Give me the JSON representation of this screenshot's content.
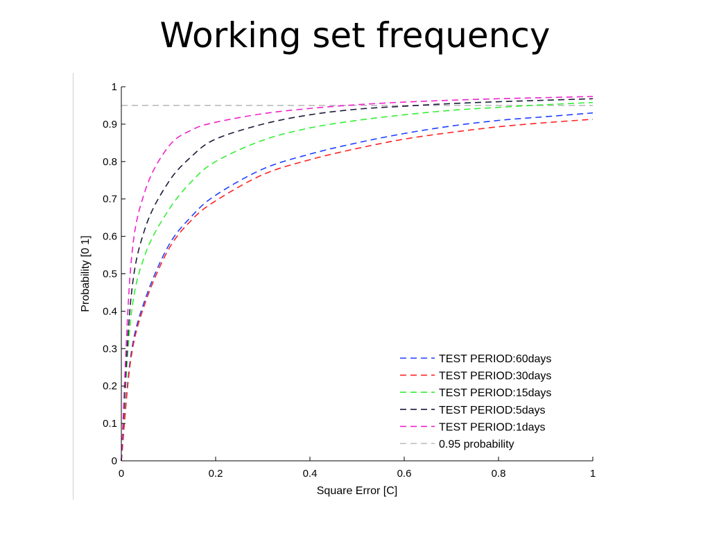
{
  "slide": {
    "title": "Working set frequency"
  },
  "chart_data": {
    "type": "line",
    "title": "",
    "xlabel": "Square Error [C]",
    "ylabel": "Probability [0 1]",
    "xlim": [
      0,
      1
    ],
    "ylim": [
      0,
      1
    ],
    "x_ticks": [
      0,
      0.2,
      0.4,
      0.6,
      0.8,
      1
    ],
    "x_tick_labels": [
      "0",
      "0.2",
      "0.4",
      "0.6",
      "0.8",
      "1"
    ],
    "y_ticks": [
      0,
      0.1,
      0.2,
      0.3,
      0.4,
      0.5,
      0.6,
      0.7,
      0.8,
      0.9,
      1
    ],
    "y_tick_labels": [
      "0",
      "0.1",
      "0.2",
      "0.3",
      "0.4",
      "0.5",
      "0.6",
      "0.7",
      "0.8",
      "0.9",
      "1"
    ],
    "grid": false,
    "legend_position": "bottom-right",
    "x": [
      0,
      0.02,
      0.05,
      0.1,
      0.15,
      0.2,
      0.3,
      0.4,
      0.5,
      0.6,
      0.7,
      0.8,
      0.9,
      1.0
    ],
    "series": [
      {
        "name": "TEST PERIOD:60days",
        "color": "#1f3fff",
        "style": "dashed",
        "values": [
          0,
          0.28,
          0.43,
          0.575,
          0.655,
          0.71,
          0.78,
          0.82,
          0.85,
          0.875,
          0.895,
          0.91,
          0.92,
          0.93
        ]
      },
      {
        "name": "TEST PERIOD:30days",
        "color": "#ff2020",
        "style": "dashed",
        "values": [
          0,
          0.27,
          0.42,
          0.565,
          0.645,
          0.695,
          0.765,
          0.805,
          0.835,
          0.86,
          0.878,
          0.893,
          0.904,
          0.913
        ]
      },
      {
        "name": "TEST PERIOD:15days",
        "color": "#33ee33",
        "style": "dashed",
        "values": [
          0,
          0.38,
          0.55,
          0.67,
          0.748,
          0.8,
          0.857,
          0.89,
          0.91,
          0.925,
          0.937,
          0.945,
          0.952,
          0.958
        ]
      },
      {
        "name": "TEST PERIOD:5days",
        "color": "#1a1a3a",
        "style": "dashed",
        "values": [
          0,
          0.43,
          0.62,
          0.745,
          0.815,
          0.86,
          0.9,
          0.925,
          0.94,
          0.948,
          0.955,
          0.96,
          0.964,
          0.968
        ]
      },
      {
        "name": "TEST PERIOD:1days",
        "color": "#ee22cc",
        "style": "dashed",
        "values": [
          0,
          0.52,
          0.72,
          0.84,
          0.885,
          0.905,
          0.928,
          0.942,
          0.952,
          0.959,
          0.964,
          0.968,
          0.971,
          0.974
        ]
      },
      {
        "name": "0.95 probability",
        "color": "#bbbbbb",
        "style": "dashed",
        "values": [
          0.95,
          0.95,
          0.95,
          0.95,
          0.95,
          0.95,
          0.95,
          0.95,
          0.95,
          0.95,
          0.95,
          0.95,
          0.95,
          0.95
        ]
      }
    ]
  }
}
